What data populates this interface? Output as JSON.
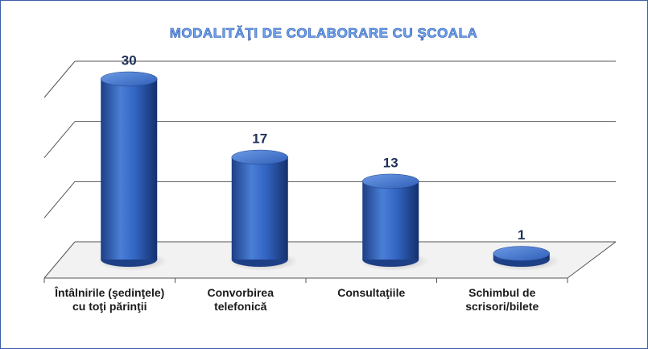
{
  "chart_data": {
    "type": "bar",
    "title": "MODALITĂŢI DE COLABORARE CU ŞCOALA",
    "categories": [
      "Întâlnirile (şedinţele) cu toţi părinţii",
      "Convorbirea telefonică",
      "Consultaţiile",
      "Schimbul de scrisori/bilete"
    ],
    "values": [
      30,
      17,
      13,
      1
    ],
    "color": "#2e5cb8",
    "ylim": [
      0,
      30
    ],
    "yticks": [
      0,
      10,
      20,
      30
    ],
    "grid": true
  }
}
